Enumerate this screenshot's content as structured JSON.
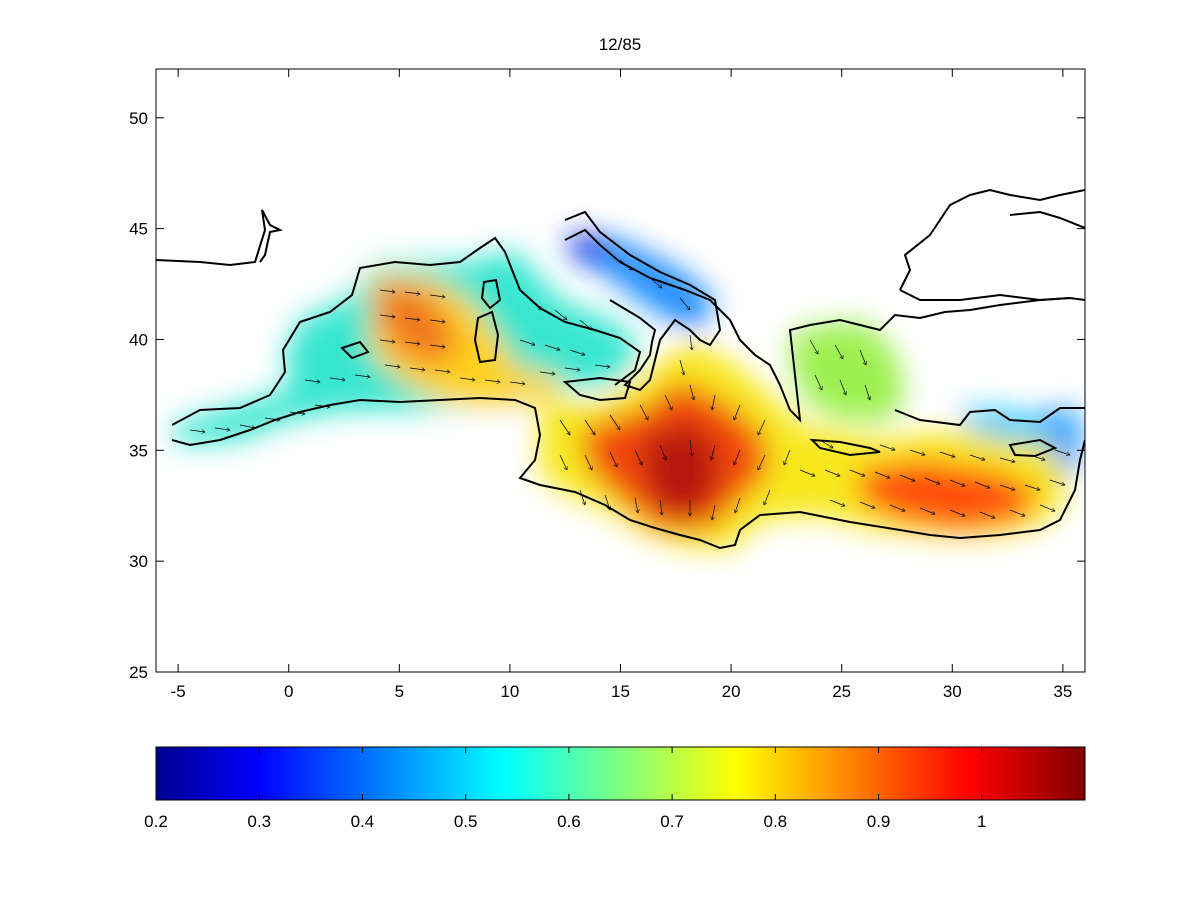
{
  "title": "12/85",
  "map": {
    "x_ticks": [
      "-5",
      "0",
      "5",
      "10",
      "15",
      "20",
      "25",
      "30",
      "35"
    ],
    "x_tick_values": [
      -5,
      0,
      5,
      10,
      15,
      20,
      25,
      30,
      35
    ],
    "y_ticks": [
      "25",
      "30",
      "35",
      "40",
      "45",
      "50"
    ],
    "y_tick_values": [
      25,
      30,
      35,
      40,
      45,
      50
    ],
    "xlim": [
      -6,
      36
    ],
    "ylim": [
      25,
      52.2
    ]
  },
  "colorbar": {
    "tick_labels": [
      "0.2",
      "0.3",
      "0.4",
      "0.5",
      "0.6",
      "0.7",
      "0.8",
      "0.9",
      "1"
    ],
    "tick_values": [
      0.2,
      0.3,
      0.4,
      0.5,
      0.6,
      0.7,
      0.8,
      0.9,
      1.0
    ],
    "range": [
      0.2,
      1.1
    ],
    "colormap": "jet",
    "colormap_stops": [
      "#00008f",
      "#0000ff",
      "#00ffff",
      "#ffff00",
      "#ff0000",
      "#800000"
    ]
  }
}
